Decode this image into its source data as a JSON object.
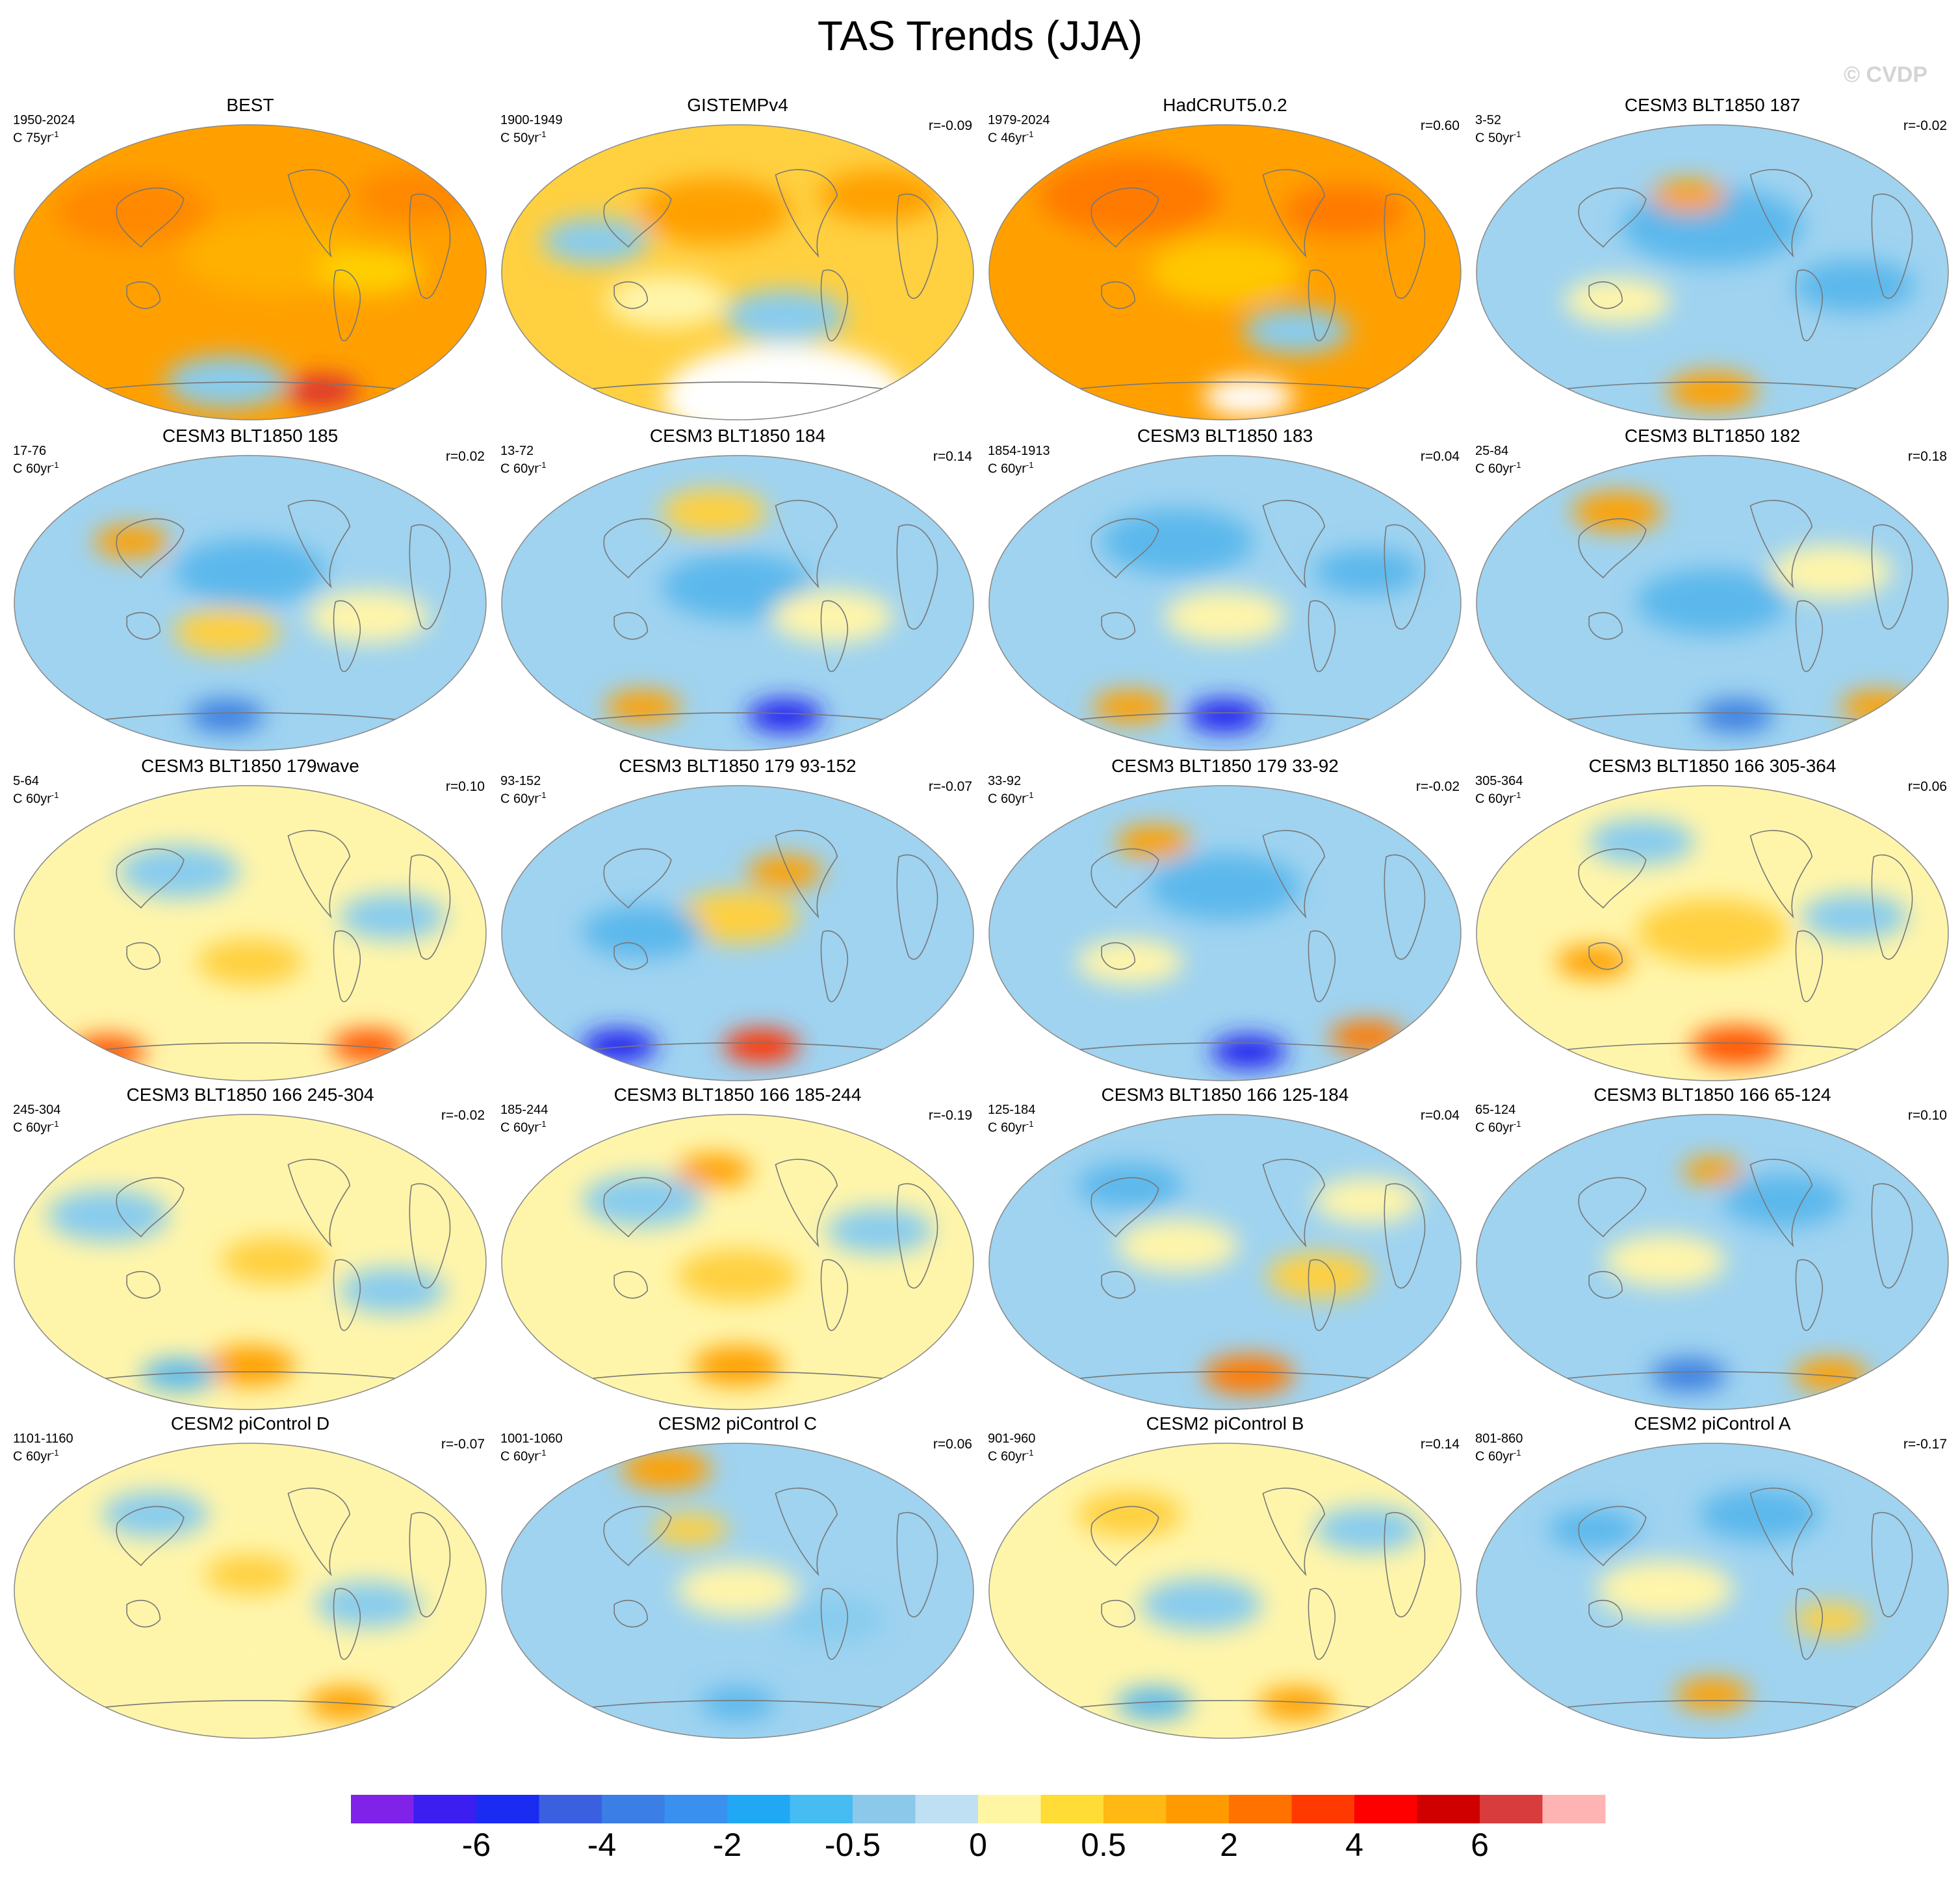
{
  "title": "TAS Trends (JJA)",
  "watermark": "© CVDP",
  "panels": [
    {
      "title": "BEST",
      "years": "1950-2024",
      "rate": "C 75yr",
      "r": "",
      "bg": "#ffa000",
      "blobs": [
        [
          "#ff8800",
          0.25,
          0.3,
          0.1
        ],
        [
          "#ffb000",
          0.55,
          0.45,
          0.12
        ],
        [
          "#ffd000",
          0.75,
          0.5,
          0.07
        ],
        [
          "#ff8800",
          0.85,
          0.25,
          0.08
        ],
        [
          "#88ccee",
          0.45,
          0.87,
          0.08
        ],
        [
          "#dd3333",
          0.65,
          0.9,
          0.05
        ]
      ]
    },
    {
      "title": "GISTEMPv4",
      "years": "1900-1949",
      "rate": "C 50yr",
      "r": "r=-0.09",
      "bg": "#ffd040",
      "blobs": [
        [
          "#ffa000",
          0.45,
          0.3,
          0.1
        ],
        [
          "#88ccee",
          0.2,
          0.4,
          0.07
        ],
        [
          "#88ccee",
          0.6,
          0.65,
          0.08
        ],
        [
          "#ffa000",
          0.8,
          0.25,
          0.08
        ],
        [
          "#fff5aa",
          0.35,
          0.6,
          0.08
        ],
        [
          "#ffffff",
          0.6,
          0.92,
          0.16
        ]
      ]
    },
    {
      "title": "HadCRUT5.0.2",
      "years": "1979-2024",
      "rate": "C 46yr",
      "r": "r=0.60",
      "bg": "#ffa000",
      "blobs": [
        [
          "#ff7a00",
          0.3,
          0.25,
          0.12
        ],
        [
          "#ffc800",
          0.5,
          0.5,
          0.1
        ],
        [
          "#88ccee",
          0.65,
          0.7,
          0.07
        ],
        [
          "#ff7a00",
          0.75,
          0.3,
          0.08
        ],
        [
          "#ffffff",
          0.55,
          0.92,
          0.06
        ]
      ]
    },
    {
      "title": "CESM3 BLT1850 187",
      "years": "3-52",
      "rate": "C 50yr",
      "r": "r=-0.02",
      "bg": "#9fd3f0",
      "blobs": [
        [
          "#5cb8ec",
          0.5,
          0.35,
          0.12
        ],
        [
          "#fff5aa",
          0.3,
          0.6,
          0.07
        ],
        [
          "#ffa000",
          0.45,
          0.25,
          0.05
        ],
        [
          "#ffa000",
          0.5,
          0.9,
          0.06
        ],
        [
          "#5cb8ec",
          0.8,
          0.55,
          0.08
        ]
      ]
    },
    {
      "title": "CESM3 BLT1850 185",
      "years": "17-76",
      "rate": "C 60yr",
      "r": "r=0.02",
      "bg": "#9fd3f0",
      "blobs": [
        [
          "#5cb8ec",
          0.5,
          0.4,
          0.1
        ],
        [
          "#ffd040",
          0.45,
          0.6,
          0.07
        ],
        [
          "#ffa000",
          0.25,
          0.3,
          0.05
        ],
        [
          "#3a7ee0",
          0.45,
          0.88,
          0.05
        ],
        [
          "#fff5aa",
          0.75,
          0.55,
          0.08
        ]
      ]
    },
    {
      "title": "CESM3 BLT1850 184",
      "years": "13-72",
      "rate": "C 60yr",
      "r": "r=0.14",
      "bg": "#9fd3f0",
      "blobs": [
        [
          "#5cb8ec",
          0.5,
          0.45,
          0.1
        ],
        [
          "#ffd040",
          0.45,
          0.2,
          0.07
        ],
        [
          "#fff5aa",
          0.7,
          0.55,
          0.08
        ],
        [
          "#2020ee",
          0.6,
          0.88,
          0.05
        ],
        [
          "#ffa000",
          0.3,
          0.85,
          0.05
        ]
      ]
    },
    {
      "title": "CESM3 BLT1850 183",
      "years": "1854-1913",
      "rate": "C 60yr",
      "r": "r=0.04",
      "bg": "#9fd3f0",
      "blobs": [
        [
          "#5cb8ec",
          0.4,
          0.3,
          0.1
        ],
        [
          "#fff5aa",
          0.5,
          0.55,
          0.08
        ],
        [
          "#2020ee",
          0.5,
          0.88,
          0.05
        ],
        [
          "#ffa000",
          0.3,
          0.85,
          0.05
        ],
        [
          "#5cb8ec",
          0.8,
          0.4,
          0.07
        ]
      ]
    },
    {
      "title": "CESM3 BLT1850 182",
      "years": "25-84",
      "rate": "C 60yr",
      "r": "r=0.18",
      "bg": "#9fd3f0",
      "blobs": [
        [
          "#ffa000",
          0.3,
          0.2,
          0.06
        ],
        [
          "#5cb8ec",
          0.5,
          0.5,
          0.1
        ],
        [
          "#fff5aa",
          0.75,
          0.4,
          0.08
        ],
        [
          "#3a7ee0",
          0.55,
          0.88,
          0.05
        ],
        [
          "#ffa000",
          0.85,
          0.85,
          0.05
        ]
      ]
    },
    {
      "title": "CESM3 BLT1850 179wave",
      "years": "5-64",
      "rate": "C 60yr",
      "r": "r=0.10",
      "bg": "#fff5aa",
      "blobs": [
        [
          "#88ccee",
          0.35,
          0.3,
          0.08
        ],
        [
          "#ffd040",
          0.5,
          0.6,
          0.07
        ],
        [
          "#ff5500",
          0.2,
          0.9,
          0.05
        ],
        [
          "#ff5500",
          0.75,
          0.88,
          0.05
        ],
        [
          "#88ccee",
          0.8,
          0.45,
          0.07
        ]
      ]
    },
    {
      "title": "CESM3 BLT1850 179 93-152",
      "years": "93-152",
      "rate": "C 60yr",
      "r": "r=-0.07",
      "bg": "#9fd3f0",
      "blobs": [
        [
          "#ffd040",
          0.5,
          0.45,
          0.08
        ],
        [
          "#ffa000",
          0.6,
          0.3,
          0.05
        ],
        [
          "#5cb8ec",
          0.3,
          0.5,
          0.08
        ],
        [
          "#ff3300",
          0.55,
          0.88,
          0.05
        ],
        [
          "#2020ee",
          0.25,
          0.88,
          0.05
        ]
      ]
    },
    {
      "title": "CESM3 BLT1850 179 33-92",
      "years": "33-92",
      "rate": "C 60yr",
      "r": "r=-0.02",
      "bg": "#9fd3f0",
      "blobs": [
        [
          "#5cb8ec",
          0.5,
          0.35,
          0.1
        ],
        [
          "#ffa000",
          0.35,
          0.2,
          0.05
        ],
        [
          "#fff5aa",
          0.3,
          0.6,
          0.07
        ],
        [
          "#2020ee",
          0.55,
          0.9,
          0.05
        ],
        [
          "#ff7a00",
          0.8,
          0.85,
          0.05
        ]
      ]
    },
    {
      "title": "CESM3 BLT1850 166 305-364",
      "years": "305-364",
      "rate": "C 60yr",
      "r": "r=0.06",
      "bg": "#fff5aa",
      "blobs": [
        [
          "#ffd040",
          0.5,
          0.5,
          0.1
        ],
        [
          "#88ccee",
          0.35,
          0.2,
          0.07
        ],
        [
          "#88ccee",
          0.8,
          0.45,
          0.07
        ],
        [
          "#ff5500",
          0.55,
          0.88,
          0.06
        ],
        [
          "#ffa000",
          0.25,
          0.6,
          0.05
        ]
      ]
    },
    {
      "title": "CESM3 BLT1850 166 245-304",
      "years": "245-304",
      "rate": "C 60yr",
      "r": "r=-0.02",
      "bg": "#fff5aa",
      "blobs": [
        [
          "#88ccee",
          0.2,
          0.35,
          0.08
        ],
        [
          "#ffd040",
          0.55,
          0.5,
          0.07
        ],
        [
          "#88ccee",
          0.8,
          0.6,
          0.07
        ],
        [
          "#ffa000",
          0.5,
          0.85,
          0.06
        ],
        [
          "#5cb8ec",
          0.35,
          0.88,
          0.05
        ]
      ]
    },
    {
      "title": "CESM3 BLT1850 166 185-244",
      "years": "185-244",
      "rate": "C 60yr",
      "r": "r=-0.19",
      "bg": "#fff5aa",
      "blobs": [
        [
          "#88ccee",
          0.3,
          0.3,
          0.08
        ],
        [
          "#ffd040",
          0.5,
          0.55,
          0.08
        ],
        [
          "#ffa000",
          0.45,
          0.2,
          0.05
        ],
        [
          "#ffa000",
          0.5,
          0.85,
          0.06
        ],
        [
          "#88ccee",
          0.8,
          0.4,
          0.07
        ]
      ]
    },
    {
      "title": "CESM3 BLT1850 166 125-184",
      "years": "125-184",
      "rate": "C 60yr",
      "r": "r=0.04",
      "bg": "#9fd3f0",
      "blobs": [
        [
          "#fff5aa",
          0.4,
          0.45,
          0.08
        ],
        [
          "#ffd040",
          0.7,
          0.55,
          0.07
        ],
        [
          "#5cb8ec",
          0.3,
          0.25,
          0.07
        ],
        [
          "#ff7a00",
          0.55,
          0.88,
          0.06
        ],
        [
          "#fff5aa",
          0.8,
          0.3,
          0.07
        ]
      ]
    },
    {
      "title": "CESM3 BLT1850 166 65-124",
      "years": "65-124",
      "rate": "C 60yr",
      "r": "r=0.10",
      "bg": "#9fd3f0",
      "blobs": [
        [
          "#5cb8ec",
          0.65,
          0.3,
          0.08
        ],
        [
          "#fff5aa",
          0.4,
          0.5,
          0.08
        ],
        [
          "#ffa000",
          0.5,
          0.2,
          0.04
        ],
        [
          "#3a7ee0",
          0.45,
          0.88,
          0.05
        ],
        [
          "#ffa000",
          0.75,
          0.88,
          0.05
        ]
      ]
    },
    {
      "title": "CESM2 piControl D",
      "years": "1101-1160",
      "rate": "C 60yr",
      "r": "r=-0.07",
      "bg": "#fff5aa",
      "blobs": [
        [
          "#88ccee",
          0.3,
          0.25,
          0.07
        ],
        [
          "#ffd040",
          0.5,
          0.45,
          0.06
        ],
        [
          "#88ccee",
          0.75,
          0.55,
          0.07
        ],
        [
          "#ffa000",
          0.7,
          0.88,
          0.05
        ],
        [
          "#fff5aa",
          0.5,
          0.7,
          0.08
        ]
      ]
    },
    {
      "title": "CESM2 piControl C",
      "years": "1001-1060",
      "rate": "C 60yr",
      "r": "r=0.06",
      "bg": "#9fd3f0",
      "blobs": [
        [
          "#ffa000",
          0.35,
          0.1,
          0.06
        ],
        [
          "#fff5aa",
          0.5,
          0.5,
          0.08
        ],
        [
          "#ffd040",
          0.4,
          0.3,
          0.05
        ],
        [
          "#88ccee",
          0.7,
          0.6,
          0.07
        ],
        [
          "#5cb8ec",
          0.5,
          0.88,
          0.05
        ]
      ]
    },
    {
      "title": "CESM2 piControl B",
      "years": "901-960",
      "rate": "C 60yr",
      "r": "r=0.14",
      "bg": "#fff5aa",
      "blobs": [
        [
          "#ffd040",
          0.3,
          0.25,
          0.07
        ],
        [
          "#88ccee",
          0.45,
          0.55,
          0.08
        ],
        [
          "#ffa000",
          0.65,
          0.88,
          0.05
        ],
        [
          "#88ccee",
          0.8,
          0.3,
          0.07
        ],
        [
          "#5cb8ec",
          0.35,
          0.88,
          0.05
        ]
      ]
    },
    {
      "title": "CESM2 piControl A",
      "years": "801-860",
      "rate": "C 60yr",
      "r": "r=-0.17",
      "bg": "#9fd3f0",
      "blobs": [
        [
          "#5cb8ec",
          0.6,
          0.25,
          0.08
        ],
        [
          "#fff5aa",
          0.4,
          0.5,
          0.09
        ],
        [
          "#ffa000",
          0.5,
          0.85,
          0.05
        ],
        [
          "#ffd040",
          0.75,
          0.6,
          0.05
        ],
        [
          "#5cb8ec",
          0.25,
          0.3,
          0.06
        ]
      ]
    }
  ],
  "colorbar": {
    "colors": [
      "#8022e8",
      "#3c1ef0",
      "#1a2cf2",
      "#3a60e0",
      "#3a7ee6",
      "#3a90ee",
      "#20a8f4",
      "#46bcf2",
      "#8cc8ea",
      "#bfdff2",
      "#fff6a4",
      "#ffdc36",
      "#ffb814",
      "#ff9a00",
      "#ff7200",
      "#ff3a00",
      "#ff0000",
      "#d00000",
      "#d83c3c",
      "#ffb4b4"
    ],
    "labels": [
      "-6",
      "-4",
      "-2",
      "-0.5",
      "0",
      "0.5",
      "2",
      "4",
      "6"
    ],
    "label_positions": [
      2,
      4,
      6,
      8,
      10,
      12,
      14,
      16,
      18
    ]
  }
}
